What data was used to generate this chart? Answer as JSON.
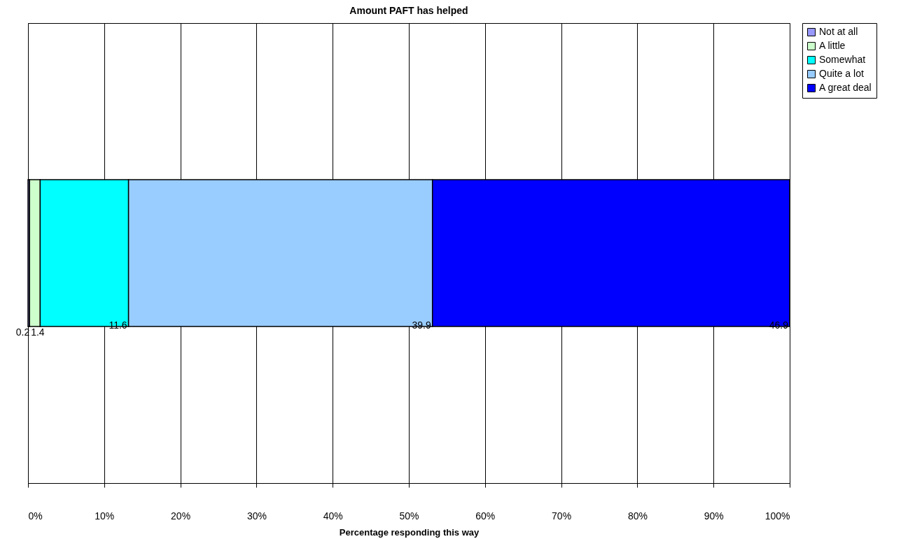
{
  "chart_data": {
    "type": "bar",
    "orientation": "horizontal",
    "stacked": true,
    "title": "Amount PAFT has helped",
    "xlabel": "Percentage responding this way",
    "categories": [
      null
    ],
    "series": [
      {
        "name": "Not at all",
        "color": "#9999ff",
        "values": [
          0.2
        ]
      },
      {
        "name": "A little",
        "color": "#ccffcc",
        "values": [
          1.4
        ]
      },
      {
        "name": "Somewhat",
        "color": "#00ffff",
        "values": [
          11.6
        ]
      },
      {
        "name": "Quite a lot",
        "color": "#99ccff",
        "values": [
          39.9
        ]
      },
      {
        "name": "A great deal",
        "color": "#0000ff",
        "values": [
          46.9
        ]
      }
    ],
    "xlim": [
      0,
      100
    ],
    "xticks": [
      {
        "value": 0,
        "label": "0%"
      },
      {
        "value": 10,
        "label": "10%"
      },
      {
        "value": 20,
        "label": "20%"
      },
      {
        "value": 30,
        "label": "30%"
      },
      {
        "value": 40,
        "label": "40%"
      },
      {
        "value": 50,
        "label": "50%"
      },
      {
        "value": 60,
        "label": "60%"
      },
      {
        "value": 70,
        "label": "70%"
      },
      {
        "value": 80,
        "label": "80%"
      },
      {
        "value": 90,
        "label": "90%"
      },
      {
        "value": 100,
        "label": "100%"
      }
    ],
    "grid": "x",
    "legend": "right",
    "data_labels": true
  }
}
